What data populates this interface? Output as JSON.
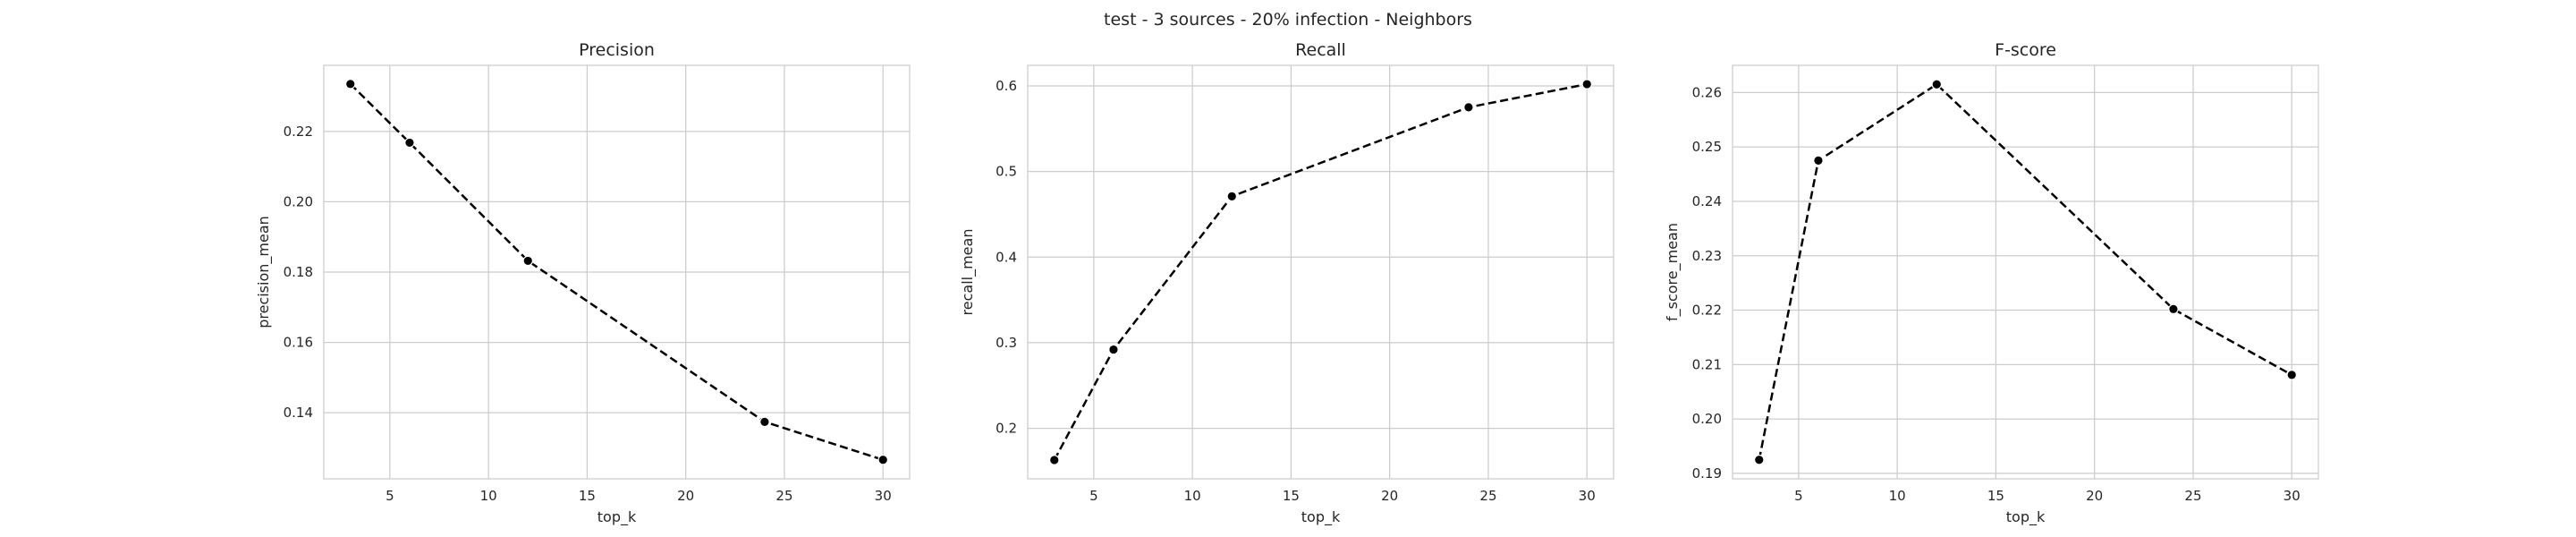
{
  "suptitle": "test - 3 sources - 20% infection - Neighbors",
  "chart_data": [
    {
      "type": "line",
      "title": "Precision",
      "xlabel": "top_k",
      "ylabel": "precision_mean",
      "x": [
        3,
        6,
        12,
        24,
        30
      ],
      "series": [
        {
          "values": [
            0.2335,
            0.2168,
            0.1832,
            0.1374,
            0.1266
          ],
          "color": "#000000",
          "line_style": "dashed",
          "marker": "circle"
        }
      ],
      "xlim": [
        1.65,
        31.35
      ],
      "ylim": [
        0.1212,
        0.2388
      ],
      "xticks": [
        5,
        10,
        15,
        20,
        25,
        30
      ],
      "xtick_labels": [
        "5",
        "10",
        "15",
        "20",
        "25",
        "30"
      ],
      "yticks": [
        0.14,
        0.16,
        0.18,
        0.2,
        0.22
      ],
      "ytick_labels": [
        "0.14",
        "0.16",
        "0.18",
        "0.20",
        "0.22"
      ],
      "grid": true
    },
    {
      "type": "line",
      "title": "Recall",
      "xlabel": "top_k",
      "ylabel": "recall_mean",
      "x": [
        3,
        6,
        12,
        24,
        30
      ],
      "series": [
        {
          "values": [
            0.163,
            0.292,
            0.471,
            0.575,
            0.602
          ],
          "color": "#000000",
          "line_style": "dashed",
          "marker": "circle"
        }
      ],
      "xlim": [
        1.65,
        31.35
      ],
      "ylim": [
        0.141,
        0.624
      ],
      "xticks": [
        5,
        10,
        15,
        20,
        25,
        30
      ],
      "xtick_labels": [
        "5",
        "10",
        "15",
        "20",
        "25",
        "30"
      ],
      "yticks": [
        0.2,
        0.3,
        0.4,
        0.5,
        0.6
      ],
      "ytick_labels": [
        "0.2",
        "0.3",
        "0.4",
        "0.5",
        "0.6"
      ],
      "grid": true
    },
    {
      "type": "line",
      "title": "F-score",
      "xlabel": "top_k",
      "ylabel": "f_score_mean",
      "x": [
        3,
        6,
        12,
        24,
        30
      ],
      "series": [
        {
          "values": [
            0.1925,
            0.2475,
            0.2615,
            0.2202,
            0.2081
          ],
          "color": "#000000",
          "line_style": "dashed",
          "marker": "circle"
        }
      ],
      "xlim": [
        1.65,
        31.35
      ],
      "ylim": [
        0.189,
        0.265
      ],
      "xticks": [
        5,
        10,
        15,
        20,
        25,
        30
      ],
      "xtick_labels": [
        "5",
        "10",
        "15",
        "20",
        "25",
        "30"
      ],
      "yticks": [
        0.19,
        0.2,
        0.21,
        0.22,
        0.23,
        0.24,
        0.25,
        0.26
      ],
      "ytick_labels": [
        "0.19",
        "0.20",
        "0.21",
        "0.22",
        "0.23",
        "0.24",
        "0.25",
        "0.26"
      ],
      "grid": true
    }
  ]
}
